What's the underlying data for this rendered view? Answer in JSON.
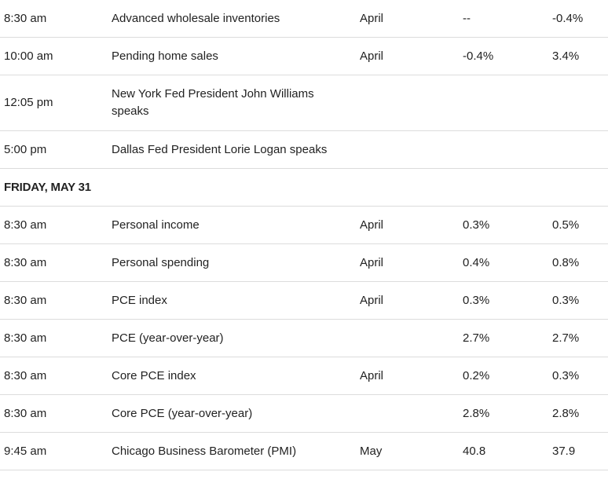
{
  "rows_before": [
    {
      "time": "8:30 am",
      "event": "Advanced wholesale inventories",
      "period": "April",
      "forecast": "--",
      "previous": "-0.4%"
    },
    {
      "time": "10:00 am",
      "event": "Pending home sales",
      "period": "April",
      "forecast": "-0.4%",
      "previous": "3.4%"
    },
    {
      "time": "12:05 pm",
      "event": "New York Fed President John Williams speaks",
      "period": "",
      "forecast": "",
      "previous": ""
    },
    {
      "time": "5:00 pm",
      "event": "Dallas Fed President Lorie Logan speaks",
      "period": "",
      "forecast": "",
      "previous": ""
    }
  ],
  "day_header": "FRIDAY, MAY 31",
  "rows_after": [
    {
      "time": "8:30 am",
      "event": "Personal income",
      "period": "April",
      "forecast": "0.3%",
      "previous": "0.5%"
    },
    {
      "time": "8:30 am",
      "event": "Personal spending",
      "period": "April",
      "forecast": "0.4%",
      "previous": "0.8%"
    },
    {
      "time": "8:30 am",
      "event": "PCE index",
      "period": "April",
      "forecast": "0.3%",
      "previous": "0.3%"
    },
    {
      "time": "8:30 am",
      "event": "PCE (year-over-year)",
      "period": "",
      "forecast": "2.7%",
      "previous": "2.7%"
    },
    {
      "time": "8:30 am",
      "event": "Core PCE index",
      "period": "April",
      "forecast": "0.2%",
      "previous": "0.3%"
    },
    {
      "time": "8:30 am",
      "event": "Core PCE (year-over-year)",
      "period": "",
      "forecast": "2.8%",
      "previous": "2.8%"
    },
    {
      "time": "9:45 am",
      "event": "Chicago Business Barometer (PMI)",
      "period": "May",
      "forecast": "40.8",
      "previous": "37.9"
    }
  ]
}
